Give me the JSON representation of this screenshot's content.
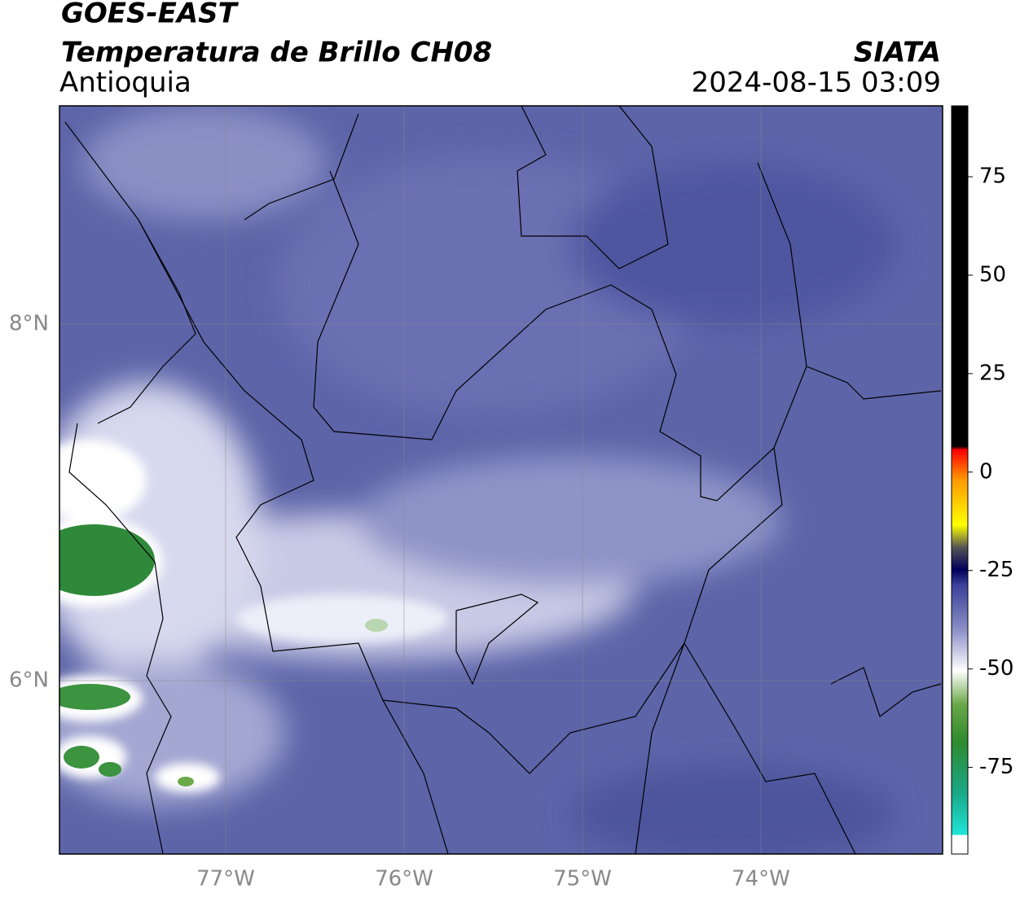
{
  "header": {
    "title": "GOES-EAST",
    "subtitle": "Temperatura de Brillo CH08",
    "region": "Antioquia",
    "source": "SIATA",
    "datetime": "2024-08-15 03:09"
  },
  "map": {
    "lat_labels": [
      "8°N",
      "6°N"
    ],
    "lon_labels": [
      "77°W",
      "76°W",
      "75°W",
      "74°W"
    ]
  },
  "colorbar": {
    "range": [
      -97,
      93
    ],
    "ticks": [
      75,
      50,
      25,
      0,
      -25,
      -50,
      -75
    ]
  }
}
